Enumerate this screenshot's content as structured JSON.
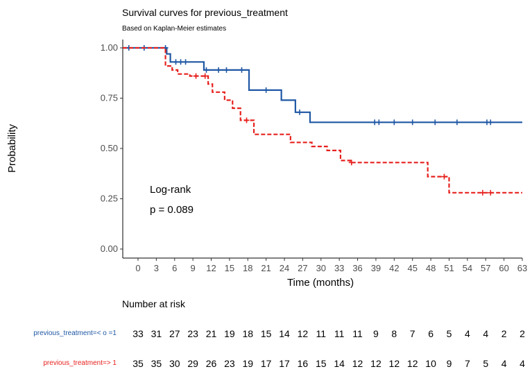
{
  "chart_data": {
    "type": "line",
    "subtype": "kaplan-meier",
    "title": "Survival curves for previous_treatment",
    "subtitle": "Based on Kaplan-Meier estimates",
    "xlabel": "Time (months)",
    "ylabel": "Probability",
    "xlim": [
      -2.5,
      63
    ],
    "ylim": [
      0,
      1
    ],
    "x_ticks": [
      0,
      3,
      6,
      9,
      12,
      15,
      18,
      21,
      24,
      27,
      30,
      33,
      36,
      39,
      42,
      45,
      48,
      51,
      54,
      57,
      60,
      63
    ],
    "y_ticks": [
      0,
      0.25,
      0.5,
      0.75,
      1.0
    ],
    "y_tick_labels": [
      "0.00",
      "0.25",
      "0.50",
      "0.75",
      "1.00"
    ],
    "annotation": {
      "line1": "Log-rank",
      "line2": "p = 0.089"
    },
    "series": [
      {
        "name": "previous_treatment=< o =1",
        "color": "#1f57a4",
        "dash": "solid",
        "steps": [
          [
            -2.5,
            1.0
          ],
          [
            4.7,
            0.97
          ],
          [
            5.3,
            0.93
          ],
          [
            10.8,
            0.89
          ],
          [
            18.2,
            0.79
          ],
          [
            23.5,
            0.74
          ],
          [
            25.8,
            0.68
          ],
          [
            28.2,
            0.63
          ],
          [
            63,
            0.63
          ]
        ],
        "censors": [
          [
            -1.5,
            1.0
          ],
          [
            1.0,
            1.0
          ],
          [
            4.5,
            1.0
          ],
          [
            6.2,
            0.93
          ],
          [
            7.0,
            0.93
          ],
          [
            7.8,
            0.93
          ],
          [
            11.2,
            0.89
          ],
          [
            13.2,
            0.89
          ],
          [
            14.5,
            0.89
          ],
          [
            17.0,
            0.89
          ],
          [
            21.0,
            0.79
          ],
          [
            26.5,
            0.68
          ],
          [
            38.8,
            0.63
          ],
          [
            39.5,
            0.63
          ],
          [
            42.0,
            0.63
          ],
          [
            45.0,
            0.63
          ],
          [
            48.7,
            0.63
          ],
          [
            52.3,
            0.63
          ],
          [
            57.2,
            0.63
          ],
          [
            57.8,
            0.63
          ]
        ]
      },
      {
        "name": "previous_treatment=> 1",
        "color": "#e6211e",
        "dash": "dashed",
        "steps": [
          [
            -2.5,
            1.0
          ],
          [
            4.5,
            0.91
          ],
          [
            5.6,
            0.89
          ],
          [
            6.5,
            0.87
          ],
          [
            8.5,
            0.86
          ],
          [
            11.5,
            0.82
          ],
          [
            12.2,
            0.78
          ],
          [
            14.2,
            0.74
          ],
          [
            15.5,
            0.7
          ],
          [
            16.8,
            0.64
          ],
          [
            19.0,
            0.57
          ],
          [
            25.0,
            0.53
          ],
          [
            28.5,
            0.51
          ],
          [
            31.0,
            0.49
          ],
          [
            33.2,
            0.44
          ],
          [
            34.8,
            0.43
          ],
          [
            47.5,
            0.36
          ],
          [
            51.0,
            0.28
          ],
          [
            63,
            0.28
          ]
        ],
        "censors": [
          [
            9.5,
            0.86
          ],
          [
            11.0,
            0.86
          ],
          [
            17.8,
            0.64
          ],
          [
            35.0,
            0.43
          ],
          [
            50.2,
            0.36
          ],
          [
            56.5,
            0.28
          ],
          [
            57.8,
            0.28
          ]
        ]
      }
    ],
    "risk_table": {
      "title": "Number at risk",
      "rows": [
        {
          "label": "previous_treatment=< o =1",
          "color": "#1f57a4",
          "values": [
            "33",
            "31",
            "27",
            "23",
            "21",
            "19",
            "18",
            "15",
            "14",
            "12",
            "11",
            "11",
            "11",
            "9",
            "8",
            "7",
            "6",
            "5",
            "4",
            "4",
            "2",
            "2"
          ]
        },
        {
          "label": "previous_treatment=> 1",
          "color": "#e6211e",
          "values": [
            "35",
            "35",
            "30",
            "29",
            "26",
            "23",
            "19",
            "17",
            "17",
            "16",
            "15",
            "14",
            "12",
            "12",
            "12",
            "12",
            "10",
            "9",
            "7",
            "5",
            "4",
            "4"
          ]
        }
      ]
    }
  }
}
